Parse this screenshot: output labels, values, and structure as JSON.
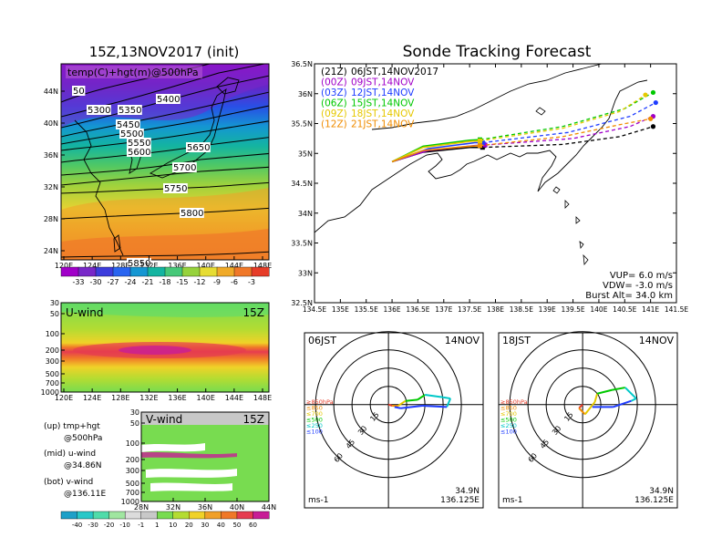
{
  "left": {
    "title": "15Z,13NOV2017 (init)",
    "map_label": "temp(C)+hgt(m)@500hPa",
    "lat_ticks": [
      "44N",
      "40N",
      "36N",
      "32N",
      "28N",
      "24N"
    ],
    "lon_ticks": [
      "120E",
      "124E",
      "128E",
      "132E",
      "136E",
      "140E",
      "144E",
      "148E"
    ],
    "contour_labels": [
      "5300",
      "5350",
      "5400",
      "5450",
      "5500",
      "5550",
      "5600",
      "5650",
      "5700",
      "5750",
      "5800",
      "5850",
      "50"
    ],
    "temp_colorbar": {
      "labels": [
        "-33",
        "-30",
        "-27",
        "-24",
        "-21",
        "-18",
        "-15",
        "-12",
        "-9",
        "-6",
        "-3"
      ],
      "colors": [
        "#a000c8",
        "#7828c8",
        "#3c3cdc",
        "#2864f0",
        "#1496d2",
        "#14b4a0",
        "#46c878",
        "#96d23c",
        "#e6dc32",
        "#f0aa28",
        "#f07828",
        "#e63c28"
      ]
    },
    "uwind": {
      "label": "U-wind",
      "time": "15Z",
      "p_ticks": [
        "30",
        "50",
        "100",
        "200",
        "300",
        "500",
        "700",
        "1000"
      ],
      "lon_ticks": [
        "120E",
        "124E",
        "128E",
        "132E",
        "136E",
        "140E",
        "144E",
        "148E"
      ]
    },
    "vwind": {
      "label": "V-wind",
      "time": "15Z",
      "p_ticks": [
        "30",
        "50",
        "100",
        "200",
        "300",
        "500",
        "700",
        "1000"
      ],
      "lat_ticks": [
        "28N",
        "32N",
        "36N",
        "40N",
        "44N"
      ]
    },
    "wind_colorbar": {
      "labels": [
        "-40",
        "-30",
        "-20",
        "-10",
        "-1",
        "1",
        "10",
        "20",
        "30",
        "40",
        "50",
        "60"
      ],
      "colors": [
        "#1ea0c8",
        "#28c8c8",
        "#50dcaa",
        "#a0e6a0",
        "#dcdcdc",
        "#c8c8c8",
        "#78dc50",
        "#b4dc32",
        "#f0d228",
        "#f0a028",
        "#f07828",
        "#e63c50",
        "#c81e96"
      ]
    },
    "legend": [
      {
        "line1": "(up) tmp+hgt",
        "line2": "@500hPa"
      },
      {
        "line1": "(mid) u-wind",
        "line2": "@34.86N"
      },
      {
        "line1": "(bot) v-wind",
        "line2": "@136.11E"
      }
    ]
  },
  "tracking": {
    "title": "Sonde Tracking Forecast",
    "runs": [
      {
        "code": "(21Z)",
        "label": "06JST,14NOV2017",
        "color": "#000000"
      },
      {
        "code": "(00Z)",
        "label": "09JST,14NOV",
        "color": "#a000c8"
      },
      {
        "code": "(03Z)",
        "label": "12JST,14NOV",
        "color": "#1e3cff"
      },
      {
        "code": "(06Z)",
        "label": "15JST,14NOV",
        "color": "#00c800"
      },
      {
        "code": "(09Z)",
        "label": "18JST,14NOV",
        "color": "#e6c800"
      },
      {
        "code": "(12Z)",
        "label": "21JST,14NOV",
        "color": "#f08c00"
      }
    ],
    "lat_ticks": [
      "36.5N",
      "36N",
      "35.5N",
      "35N",
      "34.5N",
      "34N",
      "33.5N",
      "33N",
      "32.5N"
    ],
    "lon_ticks": [
      "134.5E",
      "135E",
      "135.5E",
      "136E",
      "136.5E",
      "137E",
      "137.5E",
      "138E",
      "138.5E",
      "139E",
      "139.5E",
      "140E",
      "140.5E",
      "141E",
      "141.5E"
    ],
    "params": [
      "VUP= 6.0 m/s",
      "VDW= -3.0 m/s",
      "Burst Alt= 34.0 km"
    ]
  },
  "chart_data": [
    {
      "type": "line",
      "title": "Sonde Tracking Forecast",
      "xlim": [
        134.5,
        141.5
      ],
      "ylim": [
        32.5,
        36.5
      ],
      "series": [
        {
          "name": "(21Z) 06JST,14NOV2017",
          "ascent": [
            [
              136.0,
              34.86
            ],
            [
              136.6,
              35.02
            ],
            [
              137.5,
              35.1
            ],
            [
              137.75,
              35.1
            ]
          ],
          "descent": [
            [
              137.75,
              35.1
            ],
            [
              139.3,
              35.15
            ],
            [
              140.4,
              35.28
            ],
            [
              141.05,
              35.45
            ]
          ]
        },
        {
          "name": "(00Z) 09JST,14NOV",
          "ascent": [
            [
              136.0,
              34.86
            ],
            [
              136.7,
              35.05
            ],
            [
              137.6,
              35.13
            ],
            [
              137.8,
              35.14
            ]
          ],
          "descent": [
            [
              137.8,
              35.14
            ],
            [
              139.5,
              35.25
            ],
            [
              140.6,
              35.45
            ],
            [
              141.05,
              35.62
            ]
          ]
        },
        {
          "name": "(03Z) 12JST,14NOV",
          "ascent": [
            [
              136.0,
              34.86
            ],
            [
              136.7,
              35.08
            ],
            [
              137.6,
              35.18
            ],
            [
              137.75,
              35.18
            ]
          ],
          "descent": [
            [
              137.75,
              35.18
            ],
            [
              139.4,
              35.35
            ],
            [
              140.6,
              35.62
            ],
            [
              141.1,
              35.85
            ]
          ]
        },
        {
          "name": "(06Z) 15JST,14NOV",
          "ascent": [
            [
              136.0,
              34.86
            ],
            [
              136.6,
              35.12
            ],
            [
              137.5,
              35.22
            ],
            [
              137.7,
              35.23
            ]
          ],
          "descent": [
            [
              137.7,
              35.23
            ],
            [
              139.3,
              35.45
            ],
            [
              140.5,
              35.75
            ],
            [
              141.05,
              36.02
            ]
          ]
        },
        {
          "name": "(09Z) 18JST,14NOV",
          "ascent": [
            [
              136.0,
              34.86
            ],
            [
              136.6,
              35.1
            ],
            [
              137.5,
              35.2
            ],
            [
              137.7,
              35.21
            ]
          ],
          "descent": [
            [
              137.7,
              35.21
            ],
            [
              139.3,
              35.42
            ],
            [
              140.4,
              35.7
            ],
            [
              140.9,
              35.98
            ]
          ]
        },
        {
          "name": "(12Z) 21JST,14NOV",
          "ascent": [
            [
              136.0,
              34.86
            ],
            [
              136.6,
              35.05
            ],
            [
              137.5,
              35.12
            ],
            [
              137.7,
              35.13
            ]
          ],
          "descent": [
            [
              137.7,
              35.13
            ],
            [
              139.3,
              35.28
            ],
            [
              140.4,
              35.48
            ],
            [
              141.0,
              35.58
            ]
          ]
        }
      ]
    },
    {
      "type": "line",
      "title": "06JST 14NOV",
      "units": "ms-1",
      "location": [
        "34.9N",
        "136.125E"
      ],
      "ring_labels": [
        "15",
        "30",
        "45",
        "60"
      ],
      "pressure_legend": [
        {
          "label": "≥850hPa",
          "color": "#e63c28"
        },
        {
          "label": "≤850",
          "color": "#f08c00"
        },
        {
          "label": "≤700",
          "color": "#e6c800"
        },
        {
          "label": "≤500",
          "color": "#00c800"
        },
        {
          "label": "≤250",
          "color": "#00c8c8"
        },
        {
          "label": "≤100",
          "color": "#1e3cff"
        }
      ],
      "hodograph": [
        {
          "u": 0,
          "v": 0,
          "color": "#e63c28"
        },
        {
          "u": 3,
          "v": -1,
          "color": "#e63c28"
        },
        {
          "u": 8,
          "v": -1,
          "color": "#f08c00"
        },
        {
          "u": 14,
          "v": 3,
          "color": "#e6c800"
        },
        {
          "u": 24,
          "v": 4,
          "color": "#00c800"
        },
        {
          "u": 30,
          "v": 8,
          "color": "#00c800"
        },
        {
          "u": 45,
          "v": 6,
          "color": "#00c8c8"
        },
        {
          "u": 51,
          "v": 5,
          "color": "#00c8c8"
        },
        {
          "u": 48,
          "v": -2,
          "color": "#00c8c8"
        },
        {
          "u": 28,
          "v": -1,
          "color": "#1e3cff"
        },
        {
          "u": 10,
          "v": -3,
          "color": "#1e3cff"
        },
        {
          "u": 5,
          "v": -2,
          "color": "#1e3cff"
        }
      ]
    },
    {
      "type": "line",
      "title": "18JST 14NOV",
      "units": "ms-1",
      "location": [
        "34.9N",
        "136.125E"
      ],
      "ring_labels": [
        "15",
        "30",
        "45",
        "60"
      ],
      "pressure_legend": [
        {
          "label": "≥850hPa",
          "color": "#e63c28"
        },
        {
          "label": "≤850",
          "color": "#f08c00"
        },
        {
          "label": "≤700",
          "color": "#e6c800"
        },
        {
          "label": "≤500",
          "color": "#00c800"
        },
        {
          "label": "≤250",
          "color": "#00c8c8"
        },
        {
          "label": "≤100",
          "color": "#1e3cff"
        }
      ],
      "hodograph": [
        {
          "u": 0,
          "v": 0,
          "color": "#e63c28"
        },
        {
          "u": -3,
          "v": -3,
          "color": "#e63c28"
        },
        {
          "u": 2,
          "v": -8,
          "color": "#f08c00"
        },
        {
          "u": 10,
          "v": 2,
          "color": "#e6c800"
        },
        {
          "u": 12,
          "v": 9,
          "color": "#e6c800"
        },
        {
          "u": 24,
          "v": 12,
          "color": "#00c800"
        },
        {
          "u": 35,
          "v": 14,
          "color": "#00c800"
        },
        {
          "u": 44,
          "v": 5,
          "color": "#00c8c8"
        },
        {
          "u": 40,
          "v": 3,
          "color": "#00c8c8"
        },
        {
          "u": 25,
          "v": -2,
          "color": "#1e3cff"
        },
        {
          "u": 8,
          "v": -2,
          "color": "#1e3cff"
        }
      ]
    }
  ]
}
